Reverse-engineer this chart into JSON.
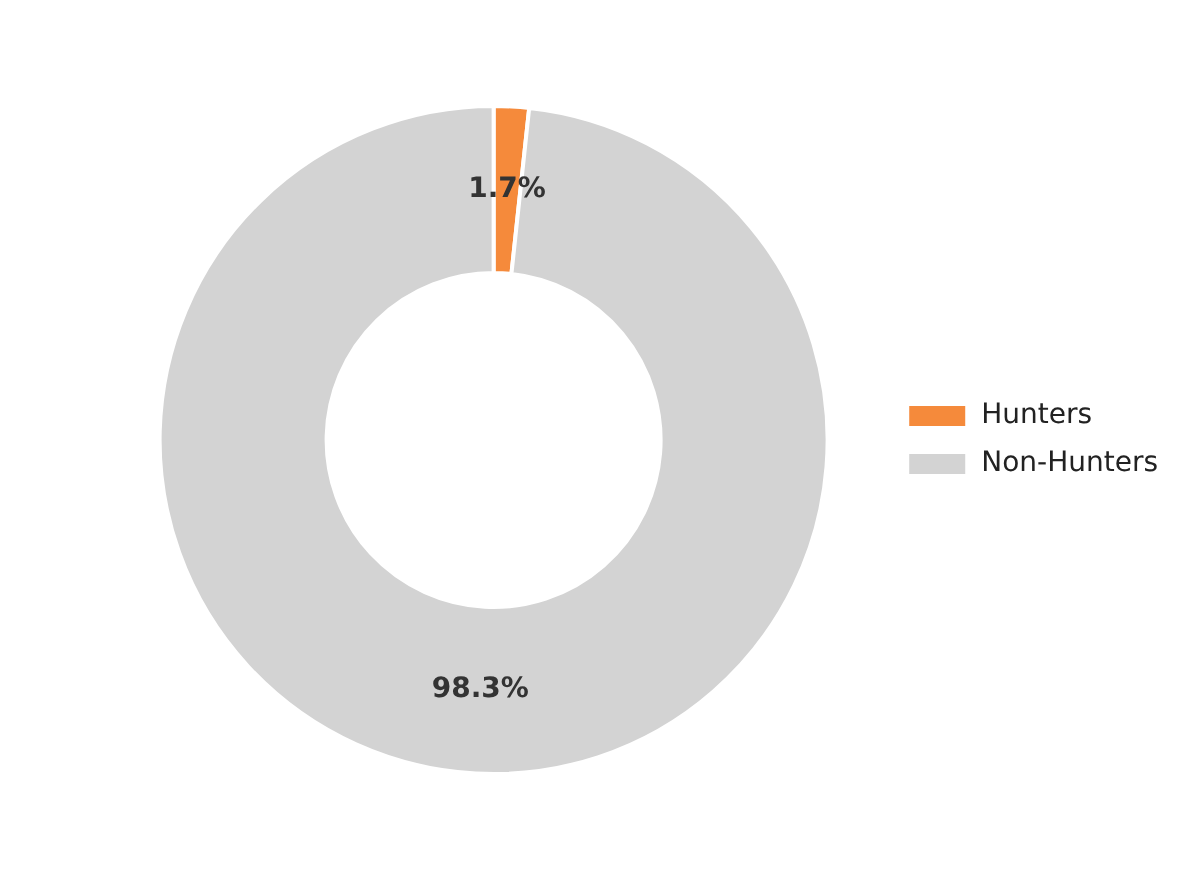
{
  "chart_data": {
    "type": "donut",
    "categories": [
      "Hunters",
      "Non-Hunters"
    ],
    "values": [
      1.7,
      98.3
    ],
    "colors": [
      "#f58a3b",
      "#d3d3d3"
    ],
    "value_labels": [
      "1.7%",
      "98.3%"
    ],
    "legend": "right"
  }
}
